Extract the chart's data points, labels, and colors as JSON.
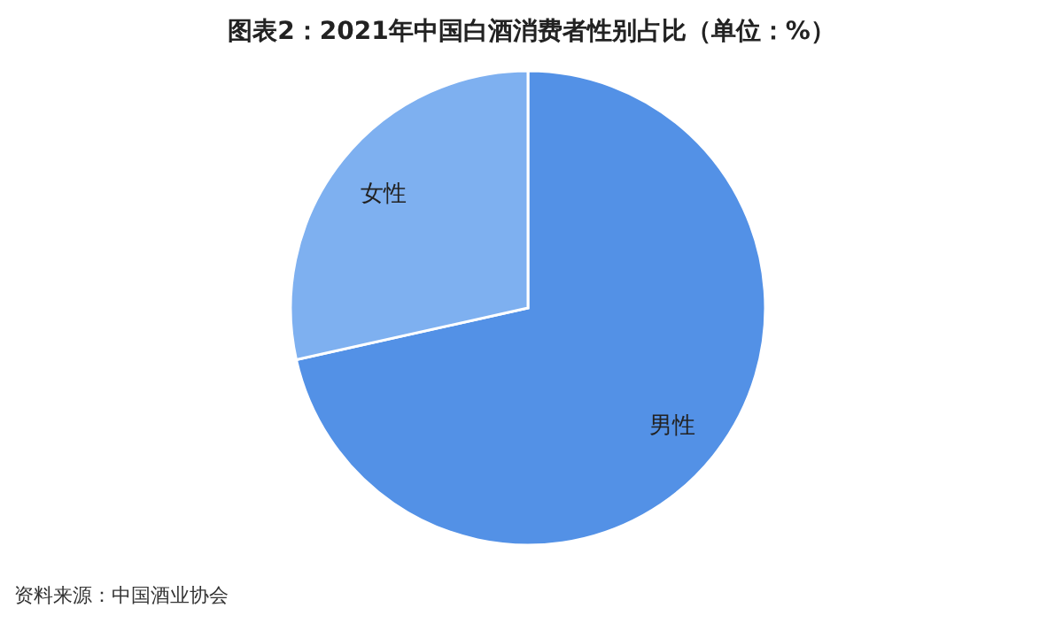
{
  "chart_data": {
    "type": "pie",
    "title": "图表2：2021年中国白酒消费者性别占比（单位：%）",
    "categories": [
      "男性",
      "女性"
    ],
    "values": [
      71.5,
      28.5
    ],
    "colors": [
      "#5391e6",
      "#7eb0f0"
    ],
    "annotations": [
      "资料来源：中国酒业协会"
    ]
  }
}
